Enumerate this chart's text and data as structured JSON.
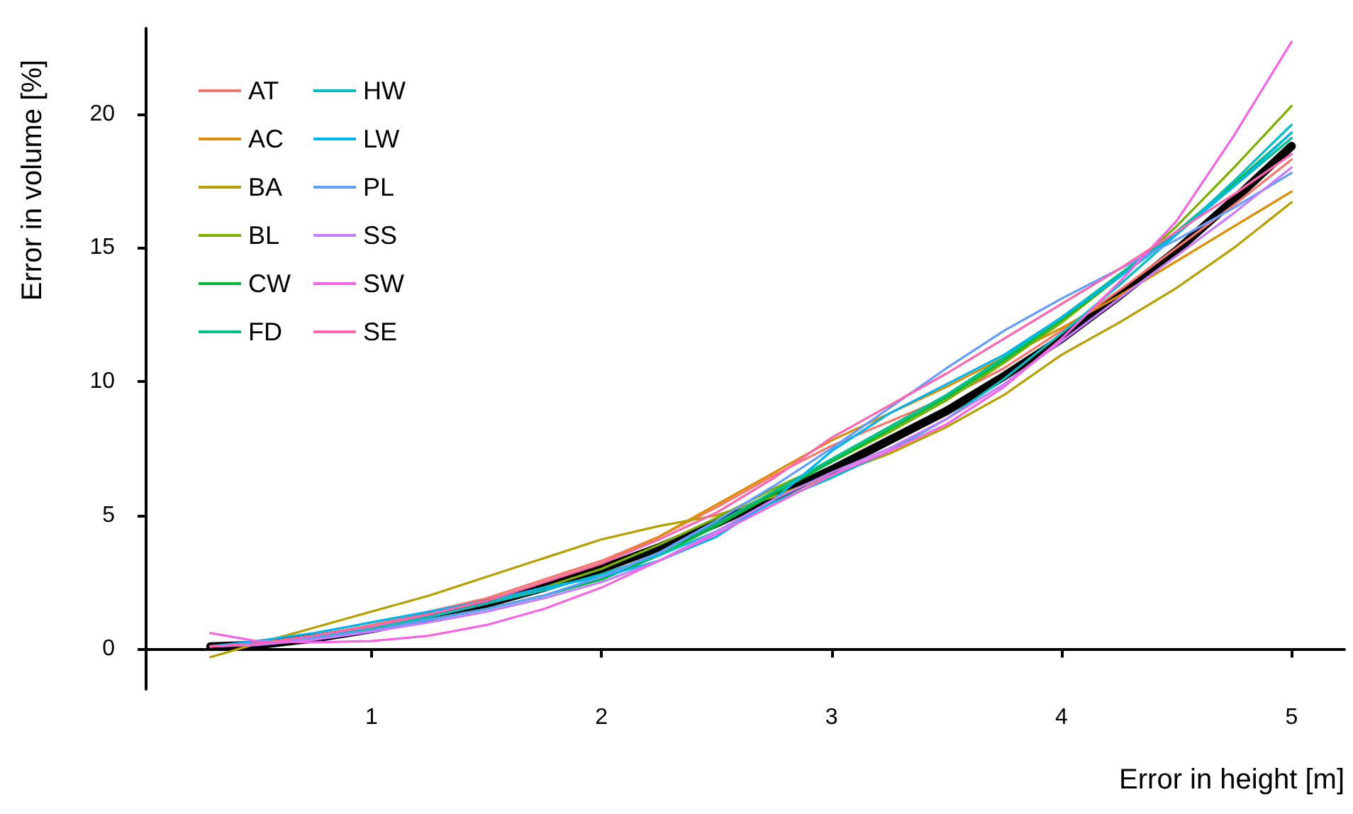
{
  "chart_data": {
    "type": "line",
    "xlabel": "Error in height [m]",
    "ylabel": "Error in volume [%]",
    "x": [
      0.3,
      0.5,
      0.75,
      1,
      1.25,
      1.5,
      1.75,
      2,
      2.25,
      2.5,
      2.75,
      3,
      3.25,
      3.5,
      3.75,
      4,
      4.25,
      4.5,
      4.75,
      5
    ],
    "xlim": [
      0.02,
      5.23
    ],
    "xticks": [
      1,
      2,
      3,
      4,
      5
    ],
    "ylim": [
      -1.5,
      23.2
    ],
    "yticks": [
      0,
      5,
      10,
      15,
      20
    ],
    "grid": false,
    "legend": "top left",
    "marker": "none",
    "line_style": "solid",
    "series": [
      {
        "name": "AT",
        "color": "#f8766d",
        "values": [
          0.1,
          0.2,
          0.5,
          0.9,
          1.4,
          1.9,
          2.6,
          3.3,
          4.2,
          5.3,
          6.5,
          7.6,
          8.5,
          9.4,
          10.5,
          11.9,
          13.4,
          15.0,
          16.6,
          18.3
        ]
      },
      {
        "name": "AC",
        "color": "#de8c00",
        "values": [
          0.1,
          0.2,
          0.5,
          0.85,
          1.3,
          1.8,
          2.5,
          3.2,
          4.2,
          5.4,
          6.6,
          7.8,
          8.8,
          9.8,
          10.9,
          12.0,
          13.2,
          14.5,
          15.8,
          17.1
        ]
      },
      {
        "name": "BA",
        "color": "#b79f00",
        "values": [
          -0.3,
          0.2,
          0.8,
          1.4,
          2.0,
          2.7,
          3.4,
          4.1,
          4.6,
          5.0,
          5.7,
          6.5,
          7.3,
          8.3,
          9.5,
          11.0,
          12.2,
          13.5,
          15.0,
          16.7
        ]
      },
      {
        "name": "BL",
        "color": "#7cae00",
        "values": [
          0.1,
          0.2,
          0.4,
          0.75,
          1.2,
          1.7,
          2.3,
          3.0,
          3.9,
          4.9,
          6.0,
          7.0,
          8.1,
          9.3,
          10.7,
          12.2,
          13.9,
          15.8,
          18.0,
          20.3
        ]
      },
      {
        "name": "CW",
        "color": "#00ba38",
        "values": [
          null,
          null,
          0.4,
          0.7,
          1.1,
          1.5,
          2.0,
          2.6,
          3.5,
          4.6,
          5.8,
          7.0,
          8.2,
          9.4,
          10.8,
          12.3,
          13.9,
          15.6,
          17.4,
          19.3
        ]
      },
      {
        "name": "FD",
        "color": "#00c08b",
        "values": [
          null,
          null,
          0.4,
          0.7,
          1.1,
          1.5,
          2.0,
          2.7,
          3.6,
          4.7,
          5.9,
          7.1,
          8.3,
          9.5,
          10.9,
          12.4,
          14.0,
          15.6,
          17.3,
          19.1
        ]
      },
      {
        "name": "HW",
        "color": "#00bfc4",
        "values": [
          0.1,
          0.2,
          0.45,
          0.8,
          1.2,
          1.7,
          2.2,
          2.8,
          3.5,
          4.4,
          5.5,
          6.4,
          7.4,
          8.6,
          10.1,
          11.8,
          13.6,
          15.5,
          17.5,
          19.6
        ]
      },
      {
        "name": "LW",
        "color": "#00b4f0",
        "values": [
          0.1,
          0.3,
          0.6,
          1.0,
          1.4,
          1.8,
          2.3,
          2.7,
          3.3,
          4.2,
          5.6,
          7.4,
          8.8,
          9.9,
          11.0,
          12.4,
          13.9,
          15.5,
          17.3,
          19.3
        ]
      },
      {
        "name": "PL",
        "color": "#619cff",
        "values": [
          0.1,
          0.2,
          0.4,
          0.7,
          1.1,
          1.5,
          2.0,
          2.7,
          3.6,
          4.8,
          6.1,
          7.5,
          9.0,
          10.5,
          11.9,
          13.1,
          14.2,
          15.3,
          16.5,
          17.8
        ]
      },
      {
        "name": "SS",
        "color": "#c77cff",
        "values": [
          0.1,
          0.15,
          0.35,
          0.65,
          1.0,
          1.4,
          1.9,
          2.5,
          3.3,
          4.4,
          5.6,
          6.6,
          7.5,
          8.6,
          9.9,
          11.5,
          13.1,
          14.7,
          16.3,
          18.0
        ]
      },
      {
        "name": "SW",
        "color": "#f564e3",
        "values": [
          0.6,
          0.3,
          0.25,
          0.3,
          0.5,
          0.9,
          1.5,
          2.3,
          3.3,
          4.3,
          5.4,
          6.5,
          7.4,
          8.4,
          9.8,
          11.6,
          13.7,
          16.0,
          19.2,
          22.7
        ]
      },
      {
        "name": "SE",
        "color": "#ff64b0",
        "values": [
          0.1,
          0.2,
          0.5,
          0.85,
          1.3,
          1.8,
          2.5,
          3.2,
          4.1,
          5.1,
          6.4,
          7.9,
          9.1,
          10.3,
          11.6,
          12.9,
          14.2,
          15.6,
          17.0,
          18.5
        ]
      },
      {
        "color": "#000000",
        "values": [
          0.1,
          0.15,
          0.4,
          0.75,
          1.2,
          1.7,
          2.3,
          3.0,
          3.8,
          4.7,
          5.7,
          6.7,
          7.8,
          8.9,
          10.2,
          11.6,
          13.2,
          14.9,
          16.8,
          18.8
        ]
      }
    ]
  }
}
